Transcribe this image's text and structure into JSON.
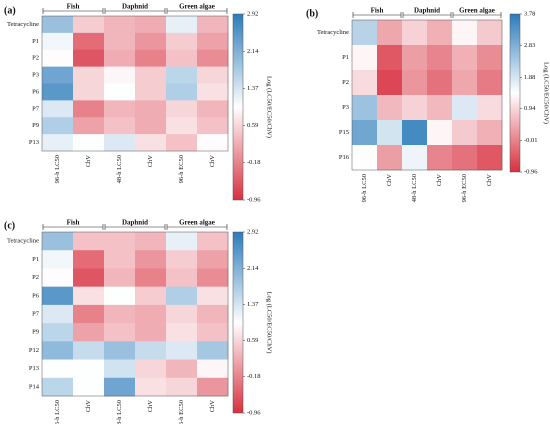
{
  "chart_data": [
    {
      "type": "heatmap",
      "panel": "(a)",
      "groups": [
        "Fish",
        "Daphnid",
        "Green algae"
      ],
      "columns": [
        "96-h LC50",
        "ChV",
        "48-h LC50",
        "ChV",
        "96-h EC50",
        "ChV"
      ],
      "rows": [
        "Tetracycline",
        "P1",
        "P2",
        "P3",
        "P6",
        "P7",
        "P9",
        "P13"
      ],
      "values": [
        [
          1.9,
          0.5,
          0.3,
          0.2,
          1.2,
          0.3
        ],
        [
          1.1,
          -0.4,
          0.3,
          0.0,
          0.5,
          0.1
        ],
        [
          0.95,
          -0.6,
          0.2,
          -0.2,
          0.4,
          -0.1
        ],
        [
          2.3,
          0.6,
          0.9,
          0.5,
          1.6,
          0.6
        ],
        [
          2.5,
          0.6,
          1.0,
          0.5,
          1.7,
          0.7
        ],
        [
          1.3,
          -0.2,
          0.3,
          0.2,
          0.6,
          0.3
        ],
        [
          1.7,
          0.1,
          0.4,
          0.2,
          0.7,
          0.4
        ],
        [
          1.2,
          1.0,
          1.3,
          0.7,
          0.4,
          0.95
        ]
      ],
      "clim": [
        -0.96,
        2.92
      ],
      "cticks": [
        2.92,
        2.14,
        1.37,
        0.59,
        -0.18,
        -0.96
      ],
      "colorbar_label": "Log (LC50/EC50/ChV)",
      "colors": [
        "#d7303f",
        "#ffffff",
        "#2b7bba"
      ]
    },
    {
      "type": "heatmap",
      "panel": "(b)",
      "groups": [
        "Fish",
        "Daphnid",
        "Green algae"
      ],
      "columns": [
        "96-h LC50",
        "ChV",
        "48-h LC50",
        "ChV",
        "96-h EC50",
        "ChV"
      ],
      "rows": [
        "Tetracycline",
        "P1",
        "P2",
        "P3",
        "P15",
        "P16"
      ],
      "values": [
        [
          2.2,
          0.4,
          0.9,
          0.5,
          1.3,
          0.8
        ],
        [
          1.3,
          -0.5,
          0.3,
          0.0,
          0.5,
          0.1
        ],
        [
          1.0,
          -0.7,
          0.2,
          -0.2,
          0.4,
          -0.1
        ],
        [
          2.5,
          0.6,
          0.9,
          0.6,
          1.8,
          1.0
        ],
        [
          3.0,
          1.9,
          3.5,
          1.3,
          0.8,
          0.5
        ],
        [
          1.4,
          0.3,
          1.6,
          0.0,
          -0.2,
          -0.5
        ]
      ],
      "clim": [
        -0.96,
        3.78
      ],
      "cticks": [
        3.78,
        2.83,
        1.88,
        0.94,
        -0.01,
        -0.96
      ],
      "colorbar_label": "Log (LC50/EC50/ChV)",
      "colors": [
        "#d7303f",
        "#ffffff",
        "#2b7bba"
      ]
    },
    {
      "type": "heatmap",
      "panel": "(c)",
      "groups": [
        "Fish",
        "Daphnid",
        "Green algae"
      ],
      "columns": [
        "96-h LC50",
        "ChV",
        "48-h LC50",
        "ChV",
        "96-h EC50",
        "ChV"
      ],
      "rows": [
        "Tetracycline",
        "P1",
        "P2",
        "P6",
        "P7",
        "P9",
        "P12",
        "P13",
        "P14"
      ],
      "values": [
        [
          1.9,
          0.4,
          0.4,
          0.3,
          1.2,
          0.4
        ],
        [
          1.1,
          -0.4,
          0.4,
          0.0,
          0.5,
          0.1
        ],
        [
          0.95,
          -0.6,
          0.3,
          -0.2,
          0.4,
          -0.1
        ],
        [
          2.5,
          0.7,
          1.0,
          0.5,
          1.7,
          0.7
        ],
        [
          1.3,
          -0.2,
          0.3,
          0.2,
          0.6,
          0.3
        ],
        [
          1.6,
          0.1,
          0.4,
          0.2,
          0.7,
          0.4
        ],
        [
          2.0,
          1.5,
          1.9,
          1.5,
          1.3,
          1.8
        ],
        [
          1.0,
          1.0,
          1.4,
          0.6,
          0.3,
          0.9
        ],
        [
          1.6,
          1.0,
          2.3,
          0.7,
          0.6,
          0.0
        ]
      ],
      "clim": [
        -0.96,
        2.92
      ],
      "cticks": [
        2.92,
        2.14,
        1.37,
        0.59,
        -0.18,
        -0.96
      ],
      "colorbar_label": "Log (LC50/EC50/ChV)",
      "colors": [
        "#d7303f",
        "#ffffff",
        "#2b7bba"
      ]
    }
  ]
}
